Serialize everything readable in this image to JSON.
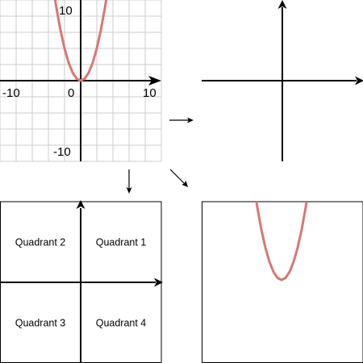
{
  "colors": {
    "curve": "#D97774",
    "grid": "#CCCCCC",
    "axis": "#000000",
    "frame": "#000000",
    "background": "#FFFFFF"
  },
  "graph_panel": {
    "tick_labels": {
      "y_max": "10",
      "x_min": "-10",
      "origin": "0",
      "x_max": "10",
      "y_min": "-10"
    }
  },
  "quadrants_panel": {
    "q1": "Quadrant 1",
    "q2": "Quadrant 2",
    "q3": "Quadrant 3",
    "q4": "Quadrant 4"
  },
  "chart_data": {
    "type": "line",
    "function": "y = x^2",
    "xlim": [
      -10,
      10
    ],
    "ylim": [
      -10,
      10
    ],
    "grid": true,
    "series": [
      {
        "x": [
          -3.2,
          -3,
          -2.5,
          -2,
          -1.5,
          -1,
          -0.5,
          0,
          0.5,
          1,
          1.5,
          2,
          2.5,
          3,
          3.2
        ],
        "y": [
          10.24,
          9,
          6.25,
          4,
          2.25,
          1,
          0.25,
          0,
          0.25,
          1,
          2.25,
          4,
          6.25,
          9,
          10.24
        ]
      }
    ]
  },
  "arrows": [
    {
      "name": "arrow-right",
      "direction": "right"
    },
    {
      "name": "arrow-down",
      "direction": "down"
    },
    {
      "name": "arrow-diagonal",
      "direction": "down-right"
    }
  ]
}
